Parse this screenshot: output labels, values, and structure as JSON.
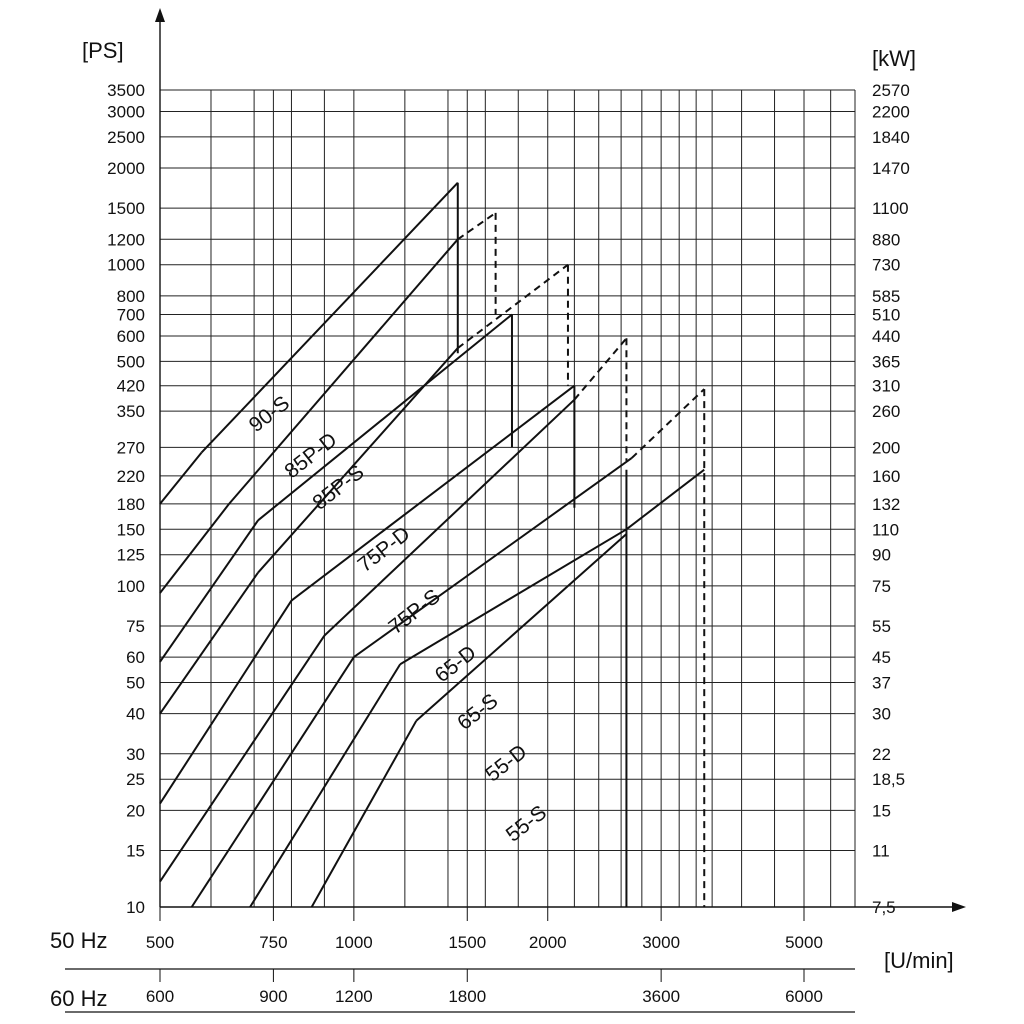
{
  "chart_data": {
    "type": "line",
    "y_axis_left_unit": "[PS]",
    "y_axis_right_unit": "[kW]",
    "x_axis_unit": "[U/min]",
    "y_scale": "log",
    "x_scale": "log",
    "ylim": [
      10,
      3500
    ],
    "xlim_50hz": [
      500,
      6000
    ],
    "grid": true,
    "y_ticks_ps": [
      3500,
      3000,
      2500,
      2000,
      1500,
      1200,
      1000,
      800,
      700,
      600,
      500,
      420,
      350,
      270,
      220,
      180,
      150,
      125,
      100,
      75,
      60,
      50,
      40,
      30,
      25,
      20,
      15,
      10
    ],
    "y_ticks_kw": [
      "2570",
      "2200",
      "1840",
      "1470",
      "1100",
      "880",
      "730",
      "585",
      "510",
      "440",
      "365",
      "310",
      "260",
      "200",
      "160",
      "132",
      "110",
      "90",
      "75",
      "55",
      "45",
      "37",
      "30",
      "22",
      "18,5",
      "15",
      "11",
      "7,5"
    ],
    "x_axis_50hz": {
      "label": "50 Hz",
      "ticks": [
        500,
        750,
        1000,
        1500,
        2000,
        3000,
        5000
      ]
    },
    "x_axis_60hz": {
      "label": "60 Hz",
      "ticks": [
        600,
        900,
        1200,
        1800,
        3600,
        6000
      ]
    },
    "x_grid_50hz": [
      500,
      600,
      700,
      750,
      800,
      900,
      1000,
      1200,
      1400,
      1500,
      1600,
      1800,
      2000,
      2200,
      2400,
      2600,
      2800,
      3000,
      3200,
      3400,
      3600,
      4000,
      4500,
      5000,
      5500
    ],
    "series": [
      {
        "name": "90-S",
        "points": [
          [
            500,
            180
          ],
          [
            580,
            260
          ],
          [
            1450,
            1800
          ]
        ],
        "cutoff_rpm": 1450,
        "cutoff_min": 530,
        "cutoff_style": "solid"
      },
      {
        "name": "85P-D",
        "points": [
          [
            500,
            95
          ],
          [
            640,
            180
          ],
          [
            1450,
            1200
          ],
          [
            1660,
            1450
          ]
        ],
        "cutoff_rpm": 1660,
        "cutoff_min": 700,
        "cutoff_style": "dashed"
      },
      {
        "name": "85P-S",
        "points": [
          [
            500,
            58
          ],
          [
            710,
            160
          ],
          [
            1760,
            700
          ]
        ],
        "cutoff_rpm": 1760,
        "cutoff_min": 270,
        "cutoff_style": "solid"
      },
      {
        "name": "75P-D",
        "points": [
          [
            500,
            40
          ],
          [
            710,
            110
          ],
          [
            1450,
            550
          ],
          [
            2150,
            1000
          ]
        ],
        "cutoff_rpm": 2150,
        "cutoff_min": 420,
        "cutoff_style": "dashed"
      },
      {
        "name": "75P-S",
        "points": [
          [
            500,
            21
          ],
          [
            800,
            90
          ],
          [
            2200,
            420
          ]
        ],
        "cutoff_rpm": 2200,
        "cutoff_min": 175,
        "cutoff_style": "solid"
      },
      {
        "name": "65-D",
        "points": [
          [
            500,
            12
          ],
          [
            900,
            70
          ],
          [
            2200,
            380
          ],
          [
            2650,
            590
          ]
        ],
        "cutoff_rpm": 2650,
        "cutoff_min": 245,
        "cutoff_style": "dashed"
      },
      {
        "name": "65-S",
        "points": [
          [
            560,
            10
          ],
          [
            1000,
            60
          ],
          [
            2700,
            250
          ],
          [
            3500,
            410
          ]
        ],
        "cutoff_rpm": 3500,
        "cutoff_min": 10,
        "cutoff_style": "dashed"
      },
      {
        "name": "55-D",
        "points": [
          [
            690,
            10
          ],
          [
            1180,
            57
          ],
          [
            2650,
            150
          ],
          [
            3500,
            230
          ]
        ],
        "cutoff_rpm": 2650,
        "cutoff_min": 10,
        "cutoff_style": "solid"
      },
      {
        "name": "55-S",
        "points": [
          [
            860,
            10
          ],
          [
            1250,
            38
          ],
          [
            2650,
            145
          ]
        ],
        "cutoff_rpm": null,
        "cutoff_min": null,
        "cutoff_style": "none"
      }
    ],
    "label_positions_note": "series names are printed along each curve",
    "label_values": [
      "90-S",
      "85P-D",
      "85P-S",
      "75P-D",
      "75P-S",
      "65-D",
      "65-S",
      "55-D",
      "55-S"
    ]
  }
}
